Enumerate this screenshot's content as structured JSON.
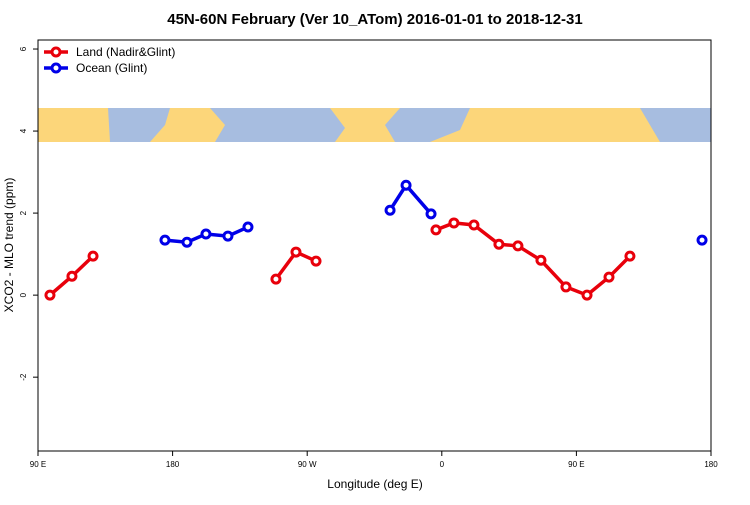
{
  "chart_data": {
    "type": "line",
    "title": "45N-60N February (Ver 10_ATom)   2016-01-01 to 2018-12-31",
    "xlabel": "Longitude (deg E)",
    "ylabel": "XCO2 - MLO trend (ppm)",
    "xlim": [
      90,
      540
    ],
    "ylim": [
      -3.8,
      6.22
    ],
    "xticks": [
      {
        "value": 90,
        "label": "90 E"
      },
      180,
      {
        "value": 270,
        "label": "90 W"
      },
      {
        "value": 360,
        "label": "0"
      },
      {
        "value": 450,
        "label": "90 E"
      },
      {
        "value": 540,
        "label": "180"
      }
    ],
    "yticks": [
      -2,
      0,
      2,
      4,
      6
    ],
    "legend": "upper left",
    "series": [
      {
        "name": "Land (Nadir&Glint)",
        "color": "#e8000b",
        "x": [
          98.0,
          112.7,
          126.8,
          null,
          249.1,
          262.5,
          275.9,
          null,
          356.1,
          368.1,
          381.5,
          398.2,
          410.9,
          426.3,
          443.0,
          457.1,
          471.8,
          485.8
        ],
        "values": [
          0.0,
          0.46,
          0.95,
          null,
          0.39,
          1.05,
          0.83,
          null,
          1.59,
          1.76,
          1.71,
          1.24,
          1.2,
          0.85,
          0.2,
          0.0,
          0.44,
          0.95
        ]
      },
      {
        "name": "Ocean (Glint)",
        "color": "#0000e8",
        "x": [
          174.9,
          189.6,
          202.3,
          217.0,
          230.4,
          null,
          325.4,
          336.1,
          352.8,
          null,
          534.0
        ],
        "values": [
          1.34,
          1.29,
          1.49,
          1.44,
          1.66,
          null,
          2.07,
          2.68,
          1.98,
          null,
          1.34
        ]
      }
    ]
  }
}
